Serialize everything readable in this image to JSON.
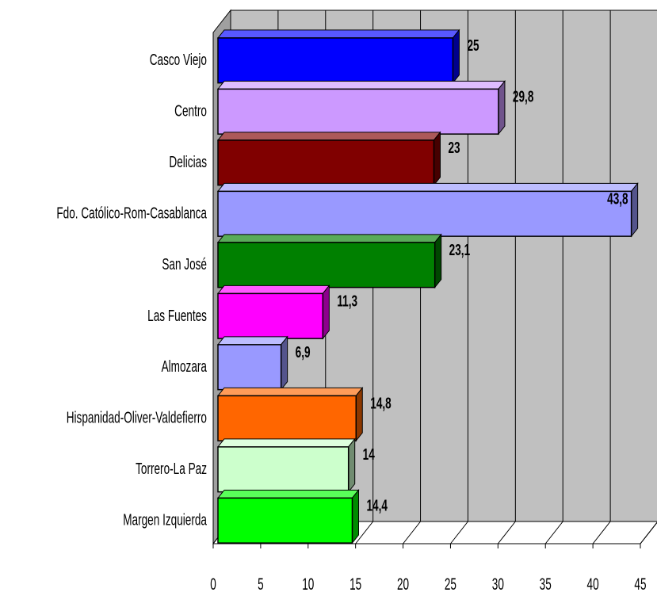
{
  "chart_data": {
    "type": "bar",
    "orientation": "horizontal",
    "three_d": true,
    "categories": [
      "Casco Viejo",
      "Centro",
      "Delicias",
      "Fdo. Católico-Rom-Casablanca",
      "San José",
      "Las Fuentes",
      "Almozara",
      "Hispanidad-Oliver-Valdefierro",
      "Torrero-La Paz",
      "Margen Izquierda"
    ],
    "values": [
      25,
      29.8,
      23,
      43.8,
      23.1,
      11.3,
      6.9,
      14.8,
      14,
      14.4
    ],
    "data_labels": [
      "25",
      "29,8",
      "23",
      "43,8",
      "23,1",
      "11,3",
      "6,9",
      "14,8",
      "14",
      "14,4"
    ],
    "colors": [
      "#0000ff",
      "#cc99ff",
      "#800000",
      "#9999ff",
      "#008000",
      "#ff00ff",
      "#9999ff",
      "#ff6600",
      "#ccffcc",
      "#00ff00"
    ],
    "x_ticks": [
      "0",
      "5",
      "10",
      "15",
      "20",
      "25",
      "30",
      "35",
      "40",
      "45"
    ],
    "xlim": [
      0,
      45
    ],
    "title": "",
    "xlabel": "",
    "ylabel": "",
    "grid": true,
    "legend": "none",
    "wall_color": "#c0c0c0"
  }
}
